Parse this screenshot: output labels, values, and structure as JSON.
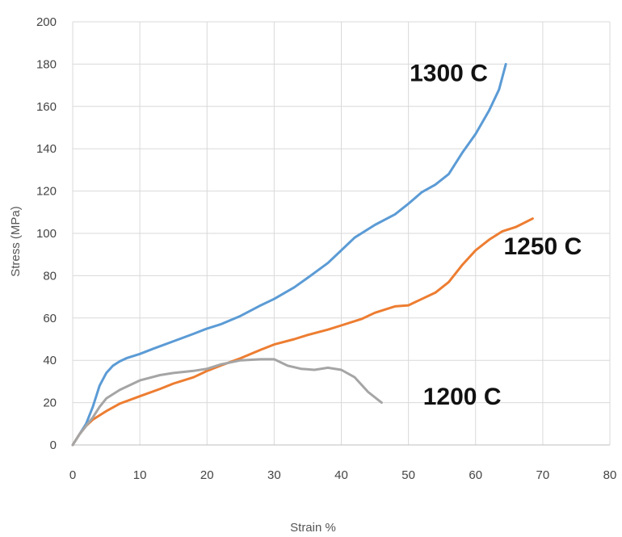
{
  "chart_data": {
    "type": "line",
    "title": "",
    "xlabel": "Strain %",
    "ylabel": "Stress (MPa)",
    "xlim": [
      0,
      80
    ],
    "ylim": [
      0,
      200
    ],
    "x_ticks": [
      0,
      10,
      20,
      30,
      40,
      50,
      60,
      70,
      80
    ],
    "y_ticks": [
      0,
      20,
      40,
      60,
      80,
      100,
      120,
      140,
      160,
      180,
      200
    ],
    "grid": true,
    "legend": "none",
    "series": [
      {
        "name": "1300 C",
        "color": "#5b9bd5",
        "points": [
          [
            0,
            0
          ],
          [
            1,
            5
          ],
          [
            2,
            10
          ],
          [
            3,
            18
          ],
          [
            4,
            28
          ],
          [
            5,
            34
          ],
          [
            6,
            37.5
          ],
          [
            7,
            39.5
          ],
          [
            8,
            41
          ],
          [
            10,
            43
          ],
          [
            12,
            45.5
          ],
          [
            15,
            49
          ],
          [
            18,
            52.5
          ],
          [
            20,
            55
          ],
          [
            22,
            57
          ],
          [
            25,
            61
          ],
          [
            28,
            66
          ],
          [
            30,
            69
          ],
          [
            33,
            74.5
          ],
          [
            35,
            79
          ],
          [
            38,
            86
          ],
          [
            40,
            92
          ],
          [
            42,
            98
          ],
          [
            45,
            104
          ],
          [
            48,
            109
          ],
          [
            50,
            114
          ],
          [
            52,
            119.5
          ],
          [
            54,
            123
          ],
          [
            56,
            128
          ],
          [
            58,
            138
          ],
          [
            60,
            147
          ],
          [
            62,
            158
          ],
          [
            63.5,
            168
          ],
          [
            64.5,
            180
          ]
        ]
      },
      {
        "name": "1250 C",
        "color": "#ed7d31",
        "points": [
          [
            0,
            0
          ],
          [
            1,
            5
          ],
          [
            2,
            9
          ],
          [
            3,
            12
          ],
          [
            5,
            16
          ],
          [
            7,
            19.5
          ],
          [
            10,
            23
          ],
          [
            13,
            26.5
          ],
          [
            15,
            29
          ],
          [
            18,
            32
          ],
          [
            20,
            35
          ],
          [
            22,
            37.5
          ],
          [
            25,
            41
          ],
          [
            28,
            45
          ],
          [
            30,
            47.5
          ],
          [
            33,
            50
          ],
          [
            35,
            52
          ],
          [
            38,
            54.5
          ],
          [
            40,
            56.5
          ],
          [
            43,
            59.5
          ],
          [
            45,
            62.5
          ],
          [
            48,
            65.5
          ],
          [
            50,
            66
          ],
          [
            52,
            69
          ],
          [
            54,
            72
          ],
          [
            56,
            77
          ],
          [
            58,
            85
          ],
          [
            60,
            92
          ],
          [
            62,
            97
          ],
          [
            64,
            101
          ],
          [
            66,
            103
          ],
          [
            68.5,
            107
          ]
        ]
      },
      {
        "name": "1200 C",
        "color": "#a5a5a5",
        "points": [
          [
            0,
            0
          ],
          [
            1,
            5
          ],
          [
            2,
            9
          ],
          [
            3,
            13
          ],
          [
            4,
            18
          ],
          [
            5,
            22
          ],
          [
            7,
            26
          ],
          [
            10,
            30.5
          ],
          [
            13,
            33
          ],
          [
            15,
            34
          ],
          [
            18,
            35
          ],
          [
            20,
            36
          ],
          [
            22,
            38
          ],
          [
            25,
            40
          ],
          [
            28,
            40.5
          ],
          [
            30,
            40.5
          ],
          [
            32,
            37.5
          ],
          [
            34,
            36
          ],
          [
            36,
            35.5
          ],
          [
            38,
            36.5
          ],
          [
            40,
            35.5
          ],
          [
            42,
            32
          ],
          [
            44,
            25
          ],
          [
            46,
            20
          ]
        ]
      }
    ],
    "annotations": [
      {
        "text": "1300 C",
        "x": 56,
        "y": 172
      },
      {
        "text": "1250 C",
        "x": 70,
        "y": 90
      },
      {
        "text": "1200 C",
        "x": 58,
        "y": 19
      }
    ]
  }
}
